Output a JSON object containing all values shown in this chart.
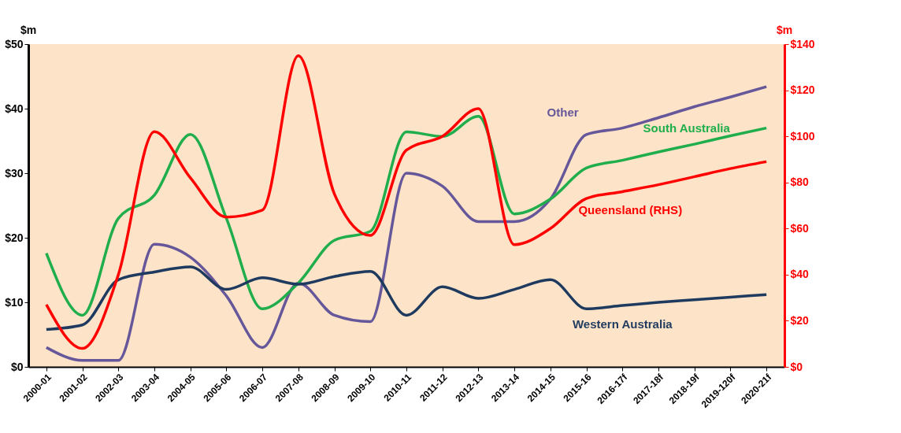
{
  "chart_data": {
    "type": "line",
    "categories": [
      "2000-01",
      "2001-02",
      "2002-03",
      "2003-04",
      "2004-05",
      "2005-06",
      "2006-07",
      "2007-08",
      "2008-09",
      "2009-10",
      "2010-11",
      "2011-12",
      "2012-13",
      "2013-14",
      "2014-15",
      "2015-16",
      "2016-17f",
      "2017-18f",
      "2018-19f",
      "2019-120f",
      "2020-21f"
    ],
    "series": [
      {
        "name": "Other",
        "color": "#66579a",
        "values": [
          3,
          1,
          1,
          19,
          17,
          11,
          3,
          13,
          8,
          7,
          30,
          28,
          22.5,
          22.5,
          26,
          36,
          37,
          38.6,
          40.3,
          41.8,
          43.4
        ]
      },
      {
        "name": "South Australia",
        "color": "#1fae4b",
        "values": [
          17.6,
          8,
          23,
          26.6,
          36,
          23,
          9,
          13,
          19.6,
          21,
          36.4,
          35.7,
          38.8,
          23.7,
          26,
          30.8,
          32,
          33.3,
          34.5,
          35.8,
          37
        ]
      },
      {
        "name": "Western Australia",
        "color": "#1f3a5f",
        "values": [
          5.8,
          6.5,
          13.5,
          14.7,
          15.5,
          12,
          13.8,
          12.8,
          14,
          14.8,
          8,
          12.4,
          10.6,
          12,
          13.5,
          9,
          9.5,
          10,
          10.4,
          10.8,
          11.2
        ]
      },
      {
        "name": "Queensland (RHS)",
        "color": "#ff0000",
        "axis": "y2",
        "values": [
          27,
          8,
          40,
          102,
          82,
          65,
          68,
          135,
          75,
          57,
          94,
          100,
          112,
          53,
          60,
          73,
          76,
          79,
          82.5,
          86,
          89
        ]
      }
    ],
    "ylabel": "$m",
    "y2label": "$m",
    "ylim": [
      0,
      50
    ],
    "yticks": [
      {
        "value": 0,
        "label": "$0"
      },
      {
        "value": 10,
        "label": "$10"
      },
      {
        "value": 20,
        "label": "$20"
      },
      {
        "value": 30,
        "label": "$30"
      },
      {
        "value": 40,
        "label": "$40"
      },
      {
        "value": 50,
        "label": "$50"
      }
    ],
    "y2lim": [
      0,
      140
    ],
    "y2ticks": [
      {
        "value": 0,
        "label": "$0"
      },
      {
        "value": 20,
        "label": "$20"
      },
      {
        "value": 40,
        "label": "$40"
      },
      {
        "value": 60,
        "label": "$60"
      },
      {
        "value": 80,
        "label": "$80"
      },
      {
        "value": 100,
        "label": "$100"
      },
      {
        "value": 120,
        "label": "$120"
      },
      {
        "value": 140,
        "label": "$140"
      }
    ],
    "grid": false,
    "legend": false,
    "line_style": "solid",
    "marker": "none"
  }
}
